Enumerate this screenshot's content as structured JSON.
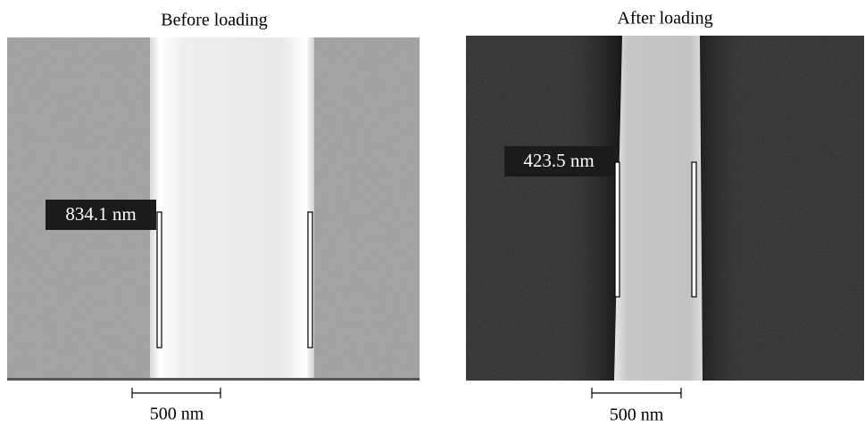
{
  "panels": [
    {
      "title": "Before loading",
      "measurement": "834.1 nm",
      "scale_bar": "500 nm"
    },
    {
      "title": "After loading",
      "measurement": "423.5 nm",
      "scale_bar": "500 nm"
    }
  ]
}
